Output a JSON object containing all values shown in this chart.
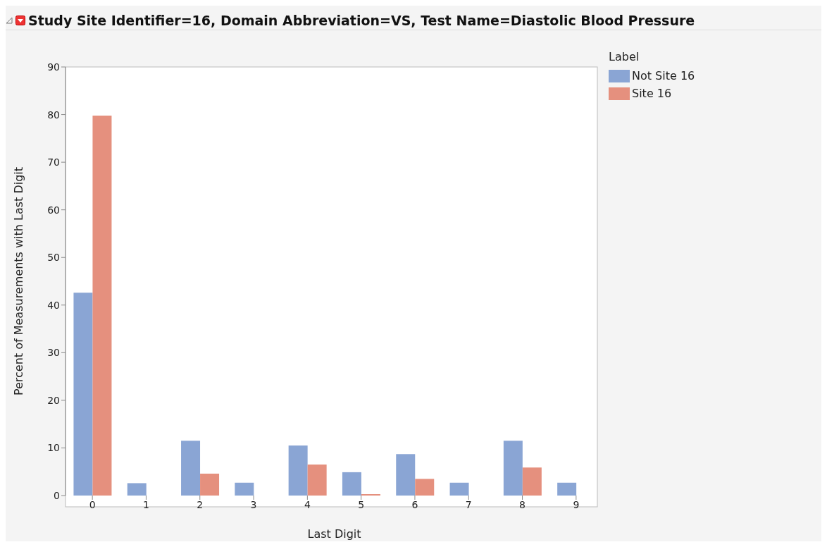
{
  "chart_data": {
    "type": "bar",
    "title": "Study Site Identifier=16, Domain Abbreviation=VS, Test Name=Diastolic Blood Pressure",
    "xlabel": "Last Digit",
    "ylabel": "Percent of Measurements with Last Digit",
    "legend_title": "Label",
    "categories": [
      "0",
      "1",
      "2",
      "3",
      "4",
      "5",
      "6",
      "7",
      "8",
      "9"
    ],
    "series": [
      {
        "name": "Not Site 16",
        "color": "#8aa5d4",
        "values": [
          42.6,
          2.6,
          11.5,
          2.7,
          10.5,
          4.9,
          8.7,
          2.7,
          11.5,
          2.7
        ]
      },
      {
        "name": "Site 16",
        "color": "#e5907e",
        "values": [
          79.8,
          0,
          4.6,
          0,
          6.5,
          0.3,
          3.5,
          0,
          5.9,
          0
        ]
      }
    ],
    "ylim": [
      0,
      90
    ],
    "yticks": [
      0,
      10,
      20,
      30,
      40,
      50,
      60,
      70,
      80,
      90
    ],
    "grid": false,
    "legend": "right"
  }
}
